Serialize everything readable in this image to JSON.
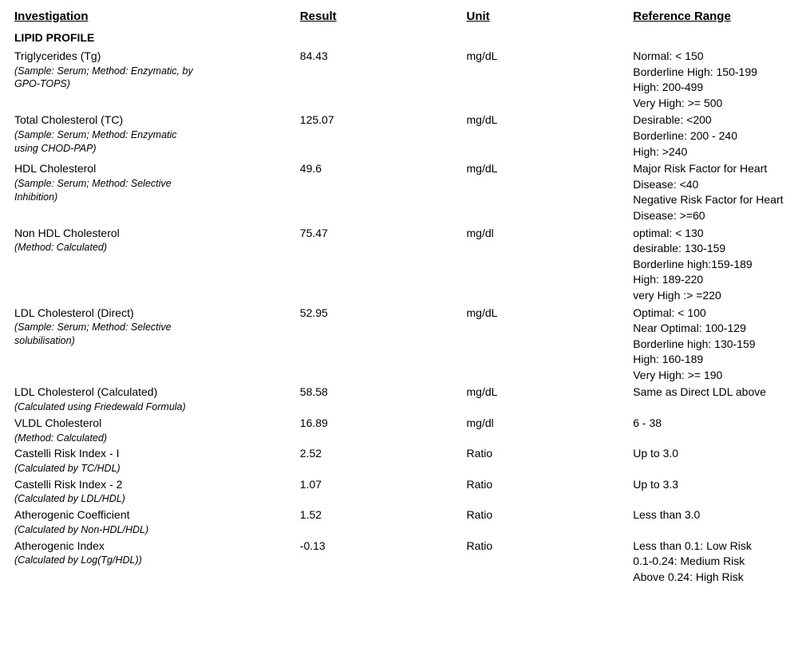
{
  "headers": {
    "investigation": "Investigation",
    "result": "Result",
    "unit": "Unit",
    "reference": "Reference Range"
  },
  "section_title": "LIPID PROFILE",
  "rows": [
    {
      "name": "Triglycerides (Tg)",
      "note": "(Sample: Serum; Method: Enzymatic, by GPO-TOPS)",
      "result": "84.43",
      "unit": "mg/dL",
      "ref": [
        "Normal: < 150",
        "Borderline High: 150-199",
        "High: 200-499",
        "Very High: >= 500"
      ]
    },
    {
      "name": "Total Cholesterol (TC)",
      "note": "(Sample: Serum; Method: Enzymatic using CHOD-PAP)",
      "result": "125.07",
      "unit": "mg/dL",
      "ref": [
        "Desirable: <200",
        "Borderline: 200 - 240",
        "High: >240"
      ]
    },
    {
      "name": "HDL Cholesterol",
      "note": "(Sample: Serum; Method: Selective Inhibition)",
      "result": "49.6",
      "unit": "mg/dL",
      "ref": [
        "Major Risk Factor for Heart Disease: <40",
        "Negative Risk Factor for Heart Disease: >=60"
      ]
    },
    {
      "name": "Non HDL Cholesterol",
      "note": "(Method: Calculated)",
      "result": "75.47",
      "unit": "mg/dl",
      "ref": [
        "optimal: < 130",
        "desirable: 130-159",
        "Borderline high:159-189",
        "High: 189-220",
        "very High :> =220"
      ]
    },
    {
      "name": "LDL Cholesterol (Direct)",
      "note": "(Sample: Serum; Method: Selective solubilisation)",
      "result": "52.95",
      "unit": "mg/dL",
      "ref": [
        "Optimal: < 100",
        "Near Optimal: 100-129",
        "Borderline high: 130-159",
        "High: 160-189",
        "Very High: >= 190"
      ]
    },
    {
      "name": "LDL Cholesterol (Calculated)",
      "note": "(Calculated using Friedewald Formula)",
      "result": "58.58",
      "unit": "mg/dL",
      "ref": [
        "Same as Direct LDL above"
      ]
    },
    {
      "name": "VLDL Cholesterol",
      "note": "(Method: Calculated)",
      "result": "16.89",
      "unit": "mg/dl",
      "ref": [
        "6 - 38"
      ]
    },
    {
      "name": "Castelli Risk Index - I",
      "note": "(Calculated by TC/HDL)",
      "result": "2.52",
      "unit": "Ratio",
      "ref": [
        "Up to 3.0"
      ]
    },
    {
      "name": "Castelli Risk Index - 2",
      "note": "(Calculated by LDL/HDL)",
      "result": "1.07",
      "unit": "Ratio",
      "ref": [
        "Up to 3.3"
      ]
    },
    {
      "name": "Atherogenic Coefficient",
      "note": "(Calculated by Non-HDL/HDL)",
      "result": "1.52",
      "unit": "Ratio",
      "ref": [
        "Less than 3.0"
      ]
    },
    {
      "name": "Atherogenic Index",
      "note": "(Calculated by Log(Tg/HDL))",
      "result": "-0.13",
      "unit": "Ratio",
      "ref": [
        "Less than 0.1: Low Risk",
        "0.1-0.24: Medium Risk",
        "Above 0.24: High Risk"
      ]
    }
  ]
}
